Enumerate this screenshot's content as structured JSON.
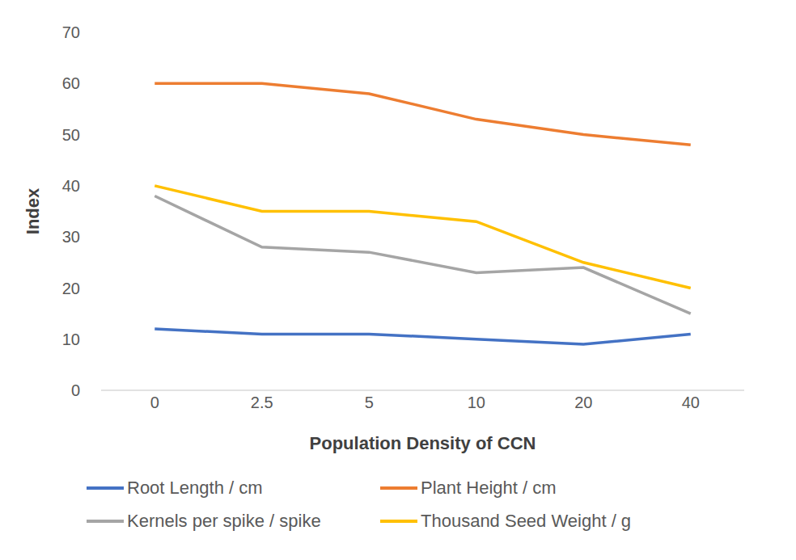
{
  "chart_data": {
    "type": "line",
    "x_label": "Population Density of CCN",
    "y_label": "Index",
    "categories": [
      "0",
      "2.5",
      "5",
      "10",
      "20",
      "40"
    ],
    "series": [
      {
        "name": "Root Length / cm",
        "color": "#4472c4",
        "values": [
          12,
          11,
          11,
          10,
          9,
          11
        ]
      },
      {
        "name": "Plant Height / cm",
        "color": "#ed7d31",
        "values": [
          60,
          60,
          58,
          53,
          50,
          48
        ]
      },
      {
        "name": "Kernels per spike / spike",
        "color": "#a5a5a5",
        "values": [
          38,
          28,
          27,
          23,
          24,
          15
        ]
      },
      {
        "name": "Thousand Seed Weight / g",
        "color": "#ffc000",
        "values": [
          40,
          35,
          35,
          33,
          25,
          20
        ]
      }
    ],
    "ylim": [
      0,
      70
    ],
    "yticks": [
      0,
      10,
      20,
      30,
      40,
      50,
      60,
      70
    ],
    "grid": false,
    "legend": "bottom"
  }
}
